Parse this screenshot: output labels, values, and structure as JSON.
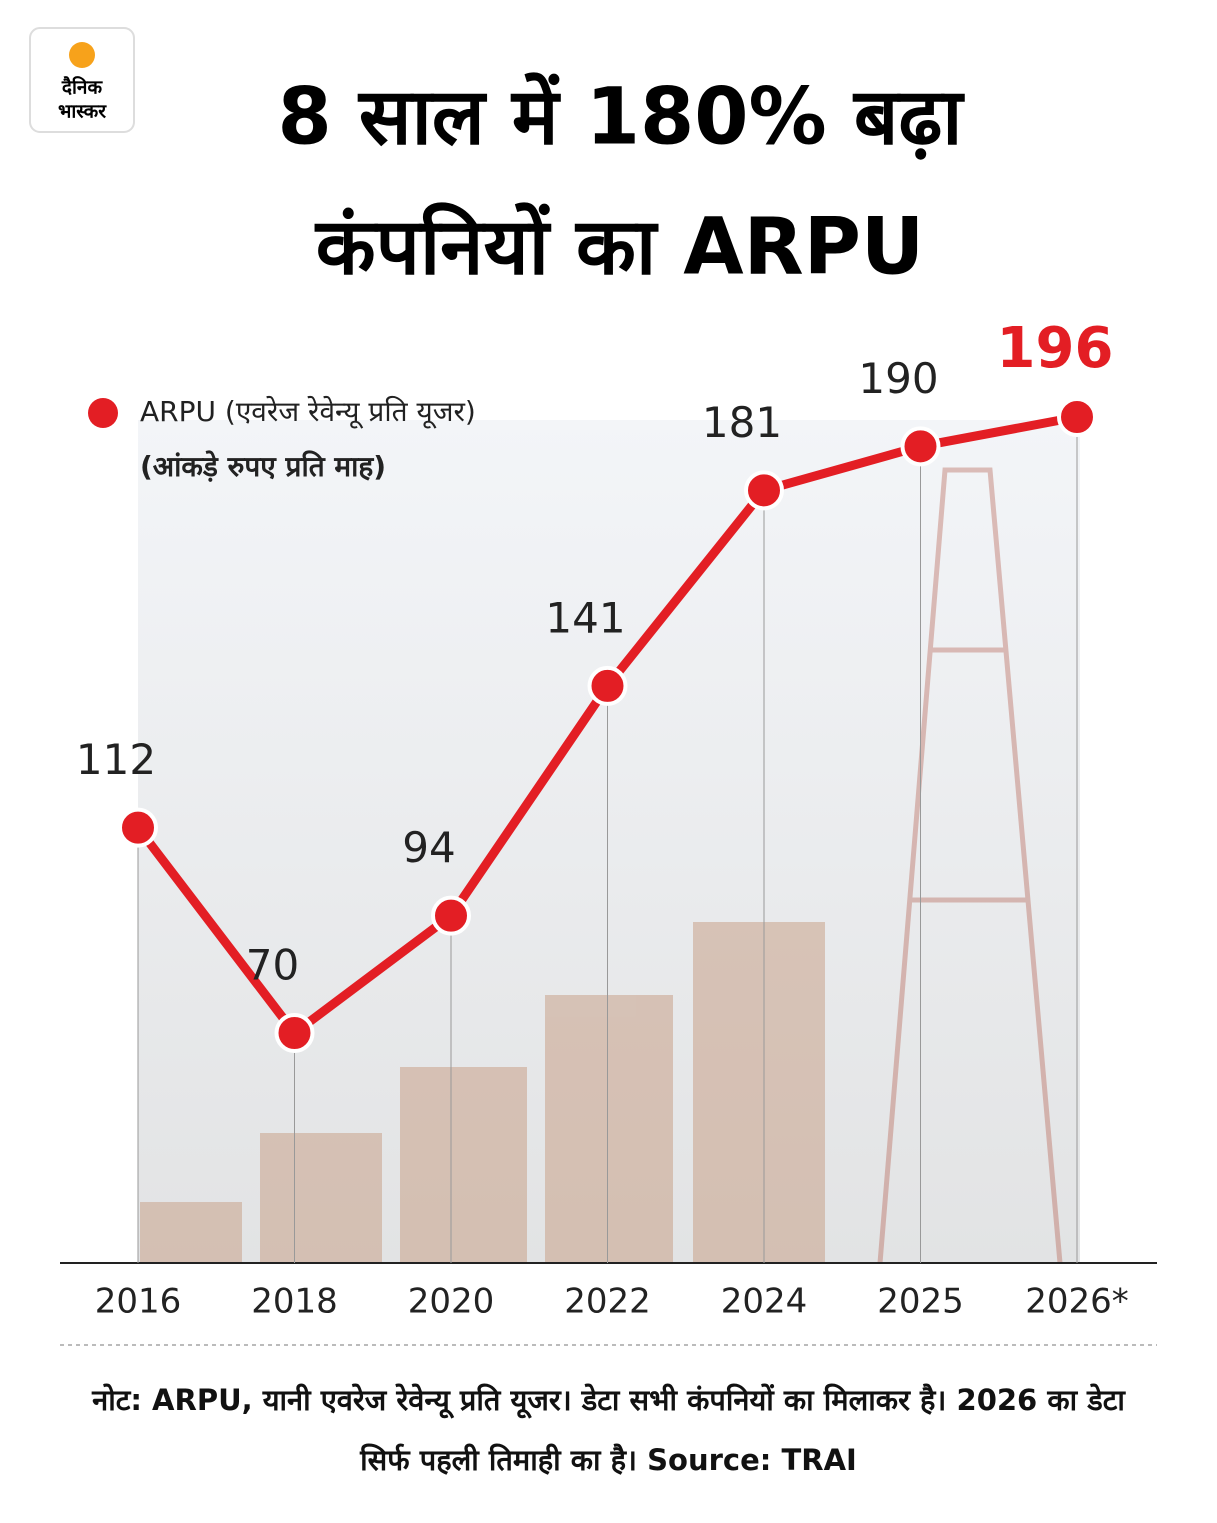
{
  "logo": [
    "दैनिक",
    "भास्कर"
  ],
  "chart_data": {
    "type": "line",
    "title": [
      "8 साल में 180% बढ़ा",
      "कंपनियों का ARPU"
    ],
    "subtitle": "(आंकड़े रुपए प्रति माह)",
    "categories": [
      "2016",
      "2018",
      "2020",
      "2022",
      "2024",
      "2025",
      "2026*"
    ],
    "series": [
      {
        "name": "ARPU (एवरेज रेवेन्यू प्रति यूजर)",
        "color": "#e31e24",
        "values": [
          112,
          70,
          94,
          141,
          181,
          190,
          196
        ]
      }
    ],
    "note": "नोट: ARPU, यानी एवरेज रेवेन्यू प्रति यूजर। डेटा सभी कंपनियों का मिलाकर है। 2026 का डेटा सिर्फ पहली तिमाही का है। Source: TRAI"
  }
}
